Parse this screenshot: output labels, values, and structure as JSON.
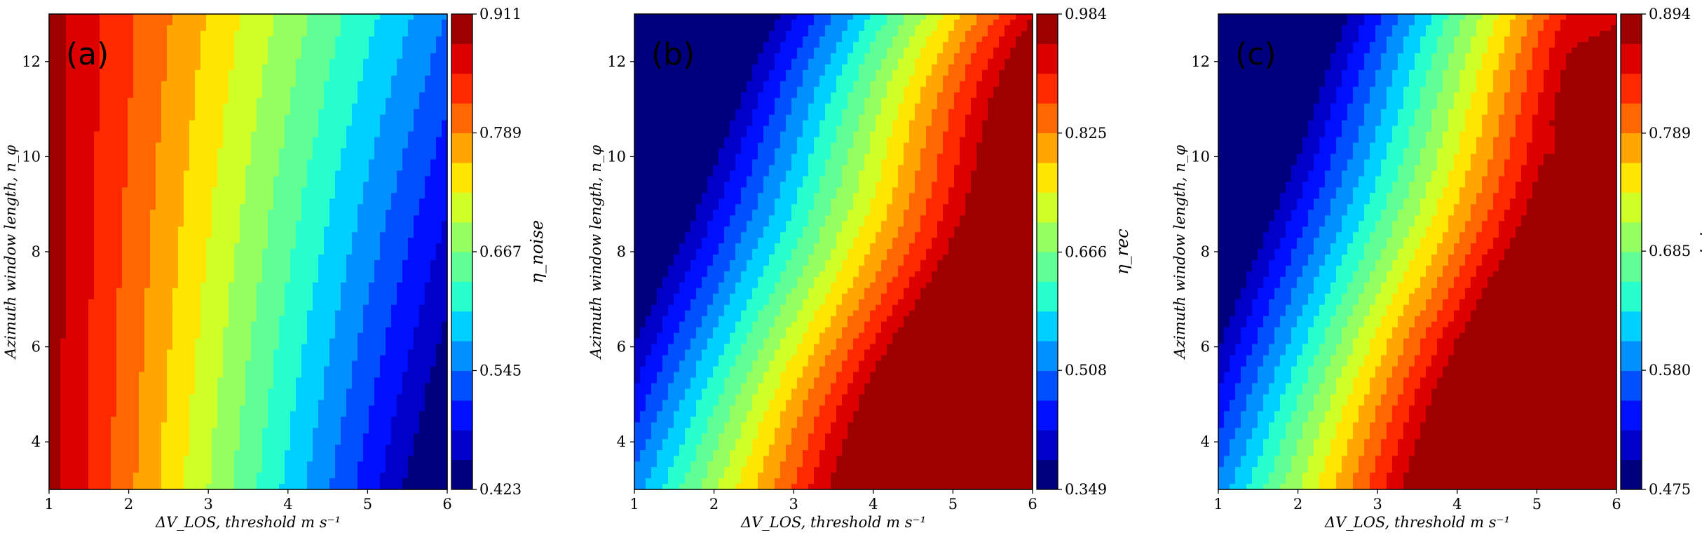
{
  "colormap": [
    "#00007f",
    "#0000c8",
    "#0010ff",
    "#0050ff",
    "#0090ff",
    "#00d0ff",
    "#27ffcf",
    "#60ff96",
    "#96ff60",
    "#cfff27",
    "#ffe500",
    "#ffa700",
    "#ff6800",
    "#ff2900",
    "#dd0000",
    "#9e0000"
  ],
  "chart_data": [
    {
      "type": "heatmap",
      "panel_tag": "(a)",
      "xlabel": "ΔV_LOS, threshold m s⁻¹",
      "ylabel": "Azimuth window length, n_φ",
      "colorbar_label": "η_noise",
      "xlim": [
        1,
        6
      ],
      "ylim": [
        3,
        13
      ],
      "x_ticks": [
        "1",
        "2",
        "3",
        "4",
        "5",
        "6"
      ],
      "y_ticks": [
        "4",
        "6",
        "8",
        "10",
        "12"
      ],
      "colorbar_ticks": [
        "0.423",
        "0.545",
        "0.667",
        "0.789",
        "0.911"
      ],
      "color_range": [
        0.423,
        0.911
      ],
      "contour_levels": 16
    },
    {
      "type": "heatmap",
      "panel_tag": "(b)",
      "xlabel": "ΔV_LOS, threshold m s⁻¹",
      "ylabel": "Azimuth window length, n_φ",
      "colorbar_label": "η_rec",
      "xlim": [
        1,
        6
      ],
      "ylim": [
        3,
        13
      ],
      "x_ticks": [
        "1",
        "2",
        "3",
        "4",
        "5",
        "6"
      ],
      "y_ticks": [
        "4",
        "6",
        "8",
        "10",
        "12"
      ],
      "colorbar_ticks": [
        "0.349",
        "0.508",
        "0.666",
        "0.825",
        "0.984"
      ],
      "color_range": [
        0.349,
        0.984
      ],
      "contour_levels": 16
    },
    {
      "type": "heatmap",
      "panel_tag": "(c)",
      "xlabel": "ΔV_LOS, threshold m s⁻¹",
      "ylabel": "Azimuth window length, n_φ",
      "colorbar_label": "η_tot",
      "xlim": [
        1,
        6
      ],
      "ylim": [
        3,
        13
      ],
      "x_ticks": [
        "1",
        "2",
        "3",
        "4",
        "5",
        "6"
      ],
      "y_ticks": [
        "4",
        "6",
        "8",
        "10",
        "12"
      ],
      "colorbar_ticks": [
        "0.475",
        "0.580",
        "0.685",
        "0.789",
        "0.894"
      ],
      "color_range": [
        0.475,
        0.894
      ],
      "contour_levels": 16
    }
  ]
}
